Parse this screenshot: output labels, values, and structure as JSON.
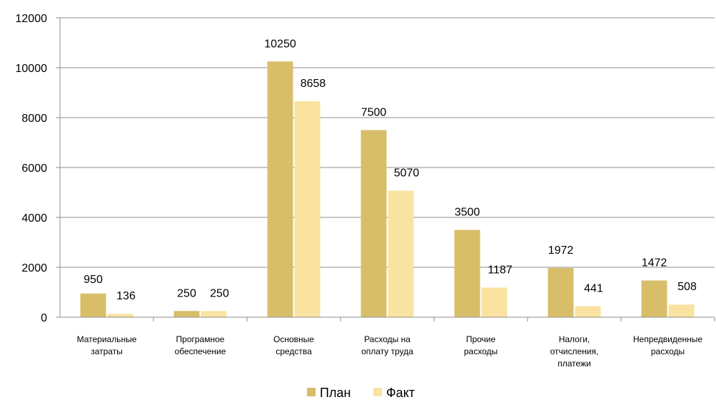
{
  "chart_data": {
    "type": "bar",
    "title": "",
    "xlabel": "",
    "ylabel": "",
    "ylim": [
      0,
      12000
    ],
    "yticks": [
      0,
      2000,
      4000,
      6000,
      8000,
      10000,
      12000
    ],
    "grid": true,
    "legend_position": "bottom",
    "categories": [
      [
        "Материальные",
        "затраты"
      ],
      [
        "Програмное",
        "обеспечение"
      ],
      [
        "Основные",
        "средства"
      ],
      [
        "Расходы на",
        "оплату труда"
      ],
      [
        "Прочие",
        "расходы"
      ],
      [
        "Налоги,",
        "отчисления,",
        "платежи"
      ],
      [
        "Непредвиденные",
        "расходы"
      ]
    ],
    "series": [
      {
        "name": "План",
        "color": "#D9BE6A",
        "values": [
          950,
          250,
          10250,
          7500,
          3500,
          1972,
          1472
        ]
      },
      {
        "name": "Факт",
        "color": "#FAE3A1",
        "values": [
          136,
          250,
          8658,
          5070,
          1187,
          441,
          508
        ]
      }
    ]
  }
}
